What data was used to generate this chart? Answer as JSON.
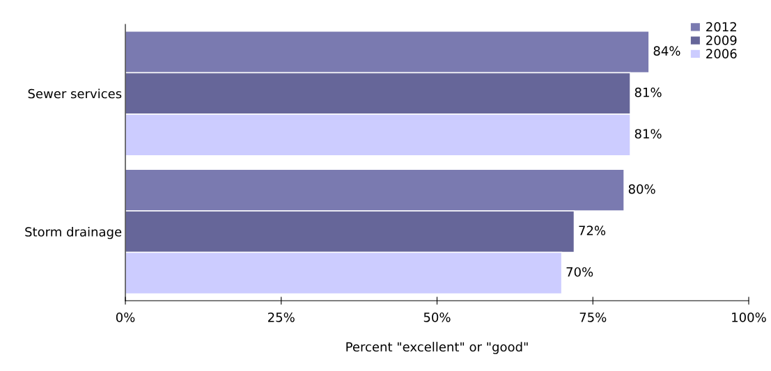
{
  "chart_data": {
    "type": "bar",
    "orientation": "horizontal",
    "xlabel": "Percent \"excellent\" or \"good\"",
    "categories": [
      "Sewer services",
      "Storm drainage"
    ],
    "series": [
      {
        "name": "2012",
        "color": "#7a7ab0",
        "values": [
          84,
          80
        ],
        "value_labels": [
          "84%",
          "80%"
        ]
      },
      {
        "name": "2009",
        "color": "#666699",
        "values": [
          81,
          72
        ],
        "value_labels": [
          "81%",
          "72%"
        ]
      },
      {
        "name": "2006",
        "color": "#ccccff",
        "values": [
          81,
          70
        ],
        "value_labels": [
          "81%",
          "70%"
        ]
      }
    ],
    "xlim": [
      0,
      100
    ],
    "xticks": [
      {
        "value": 0,
        "label": "0%"
      },
      {
        "value": 25,
        "label": "25%"
      },
      {
        "value": 50,
        "label": "50%"
      },
      {
        "value": 75,
        "label": "75%"
      },
      {
        "value": 100,
        "label": "100%"
      }
    ],
    "legend": "top right",
    "grid": false
  }
}
